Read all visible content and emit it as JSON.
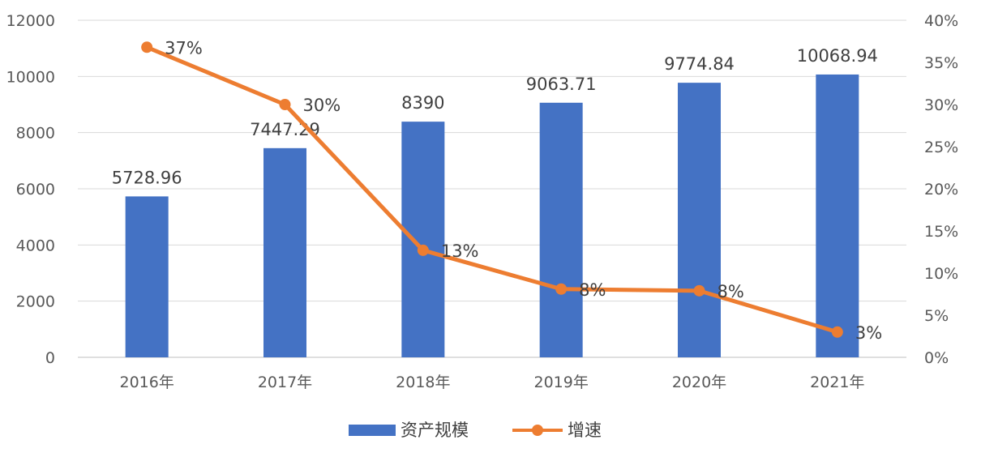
{
  "chart_data": {
    "type": "bar",
    "categories": [
      "2016年",
      "2017年",
      "2018年",
      "2019年",
      "2020年",
      "2021年"
    ],
    "series": [
      {
        "name": "资产规模",
        "type": "bar",
        "axis": "left",
        "color": "#4472C4",
        "values": [
          5728.96,
          7447.29,
          8390,
          9063.71,
          9774.84,
          10068.94
        ],
        "labels": [
          "5728.96",
          "7447.29",
          "8390",
          "9063.71",
          "9774.84",
          "10068.94"
        ]
      },
      {
        "name": "增速",
        "type": "line",
        "axis": "right",
        "color": "#ED7D31",
        "values": [
          36.8,
          30,
          12.7,
          8.1,
          7.9,
          3
        ],
        "labels": [
          "37%",
          "30%",
          "13%",
          "8%",
          "8%",
          "3%"
        ]
      }
    ],
    "ylim": [
      0,
      12000
    ],
    "yticks": [
      "0",
      "2000",
      "4000",
      "6000",
      "8000",
      "10000",
      "12000"
    ],
    "y2lim": [
      0,
      40
    ],
    "y2ticks": [
      "0%",
      "5%",
      "10%",
      "15%",
      "20%",
      "25%",
      "30%",
      "35%",
      "40%"
    ],
    "grid": true,
    "legend_position": "bottom",
    "legend": [
      "资产规模",
      "增速"
    ]
  }
}
